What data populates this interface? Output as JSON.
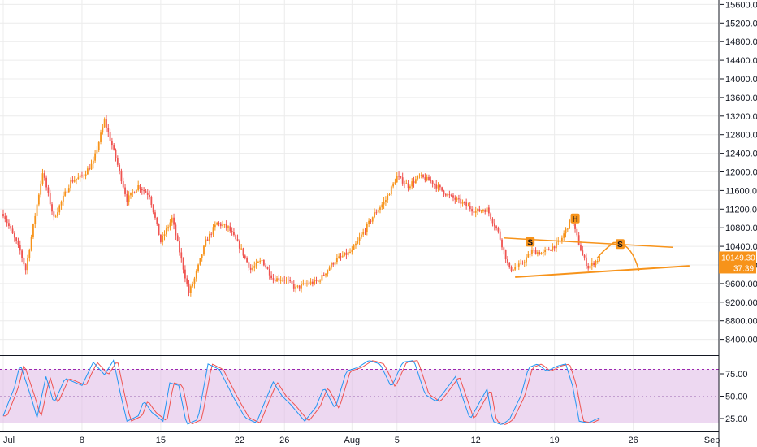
{
  "chart_data": {
    "type": "candlestick",
    "colors": {
      "up": "#f7931a",
      "down": "#ef5350",
      "pattern_line": "#f7931a",
      "price_badge": "#f7931a",
      "rsi_band_fill": "#e1bee7",
      "rsi_line_k": "#2196f3",
      "rsi_line_d": "#ef5350",
      "grid": "#ececec",
      "axis": "#131722"
    },
    "price_axis": {
      "ylim": [
        8000,
        15700
      ],
      "tick_labels": [
        "15600.00",
        "15200.00",
        "14800.00",
        "14400.00",
        "14000.00",
        "13600.00",
        "13200.00",
        "12800.00",
        "12400.00",
        "12000.00",
        "11600.00",
        "11200.00",
        "10800.00",
        "10400.00",
        "10000.00",
        "9600.00",
        "9200.00",
        "8800.00",
        "8400.00"
      ]
    },
    "x_axis": {
      "tick_labels": [
        "Jul",
        "8",
        "15",
        "22",
        "26",
        "Aug",
        "5",
        "12",
        "19",
        "26",
        "Sep"
      ],
      "tick_days": [
        0,
        7,
        14,
        21,
        25,
        31,
        35,
        42,
        49,
        56,
        63
      ]
    },
    "current_price": {
      "value_label": "10149.30",
      "countdown_label": "37:39",
      "value": 10149.3
    },
    "pattern": {
      "name": "head-and-shoulders",
      "labels": [
        "S",
        "H",
        "S"
      ],
      "neckline": [
        [
          45.5,
          9740
        ],
        [
          61,
          9980
        ]
      ],
      "resistance": [
        [
          44.5,
          10580
        ],
        [
          59.5,
          10380
        ]
      ],
      "label_points": [
        [
          46.8,
          10500
        ],
        [
          50.8,
          11000
        ],
        [
          54.8,
          10450
        ]
      ]
    },
    "rsi_panel": {
      "ylim": [
        0,
        100
      ],
      "band": [
        20,
        80
      ],
      "tick_labels": [
        "75.00",
        "50.00",
        "25.00"
      ],
      "tick_values": [
        75,
        50,
        25
      ]
    },
    "candle_keyframes": [
      [
        0,
        11100
      ],
      [
        1.5,
        10300
      ],
      [
        2,
        9900
      ],
      [
        3.5,
        12000
      ],
      [
        4.5,
        11000
      ],
      [
        6,
        11800
      ],
      [
        7,
        11900
      ],
      [
        8,
        12200
      ],
      [
        9,
        13100
      ],
      [
        10,
        12300
      ],
      [
        11,
        11400
      ],
      [
        12,
        11700
      ],
      [
        13,
        11500
      ],
      [
        14,
        10500
      ],
      [
        15,
        11000
      ],
      [
        16.5,
        9400
      ],
      [
        17,
        9700
      ],
      [
        18,
        10500
      ],
      [
        19,
        10900
      ],
      [
        20,
        10800
      ],
      [
        21,
        10400
      ],
      [
        22,
        9900
      ],
      [
        23,
        10100
      ],
      [
        24,
        9700
      ],
      [
        25,
        9700
      ],
      [
        26,
        9500
      ],
      [
        27,
        9600
      ],
      [
        28,
        9650
      ],
      [
        29.5,
        10100
      ],
      [
        31,
        10300
      ],
      [
        32,
        10700
      ],
      [
        33,
        11100
      ],
      [
        34,
        11400
      ],
      [
        35,
        11900
      ],
      [
        36,
        11700
      ],
      [
        37,
        11900
      ],
      [
        38,
        11800
      ],
      [
        39.5,
        11500
      ],
      [
        41,
        11300
      ],
      [
        42,
        11150
      ],
      [
        43,
        11200
      ],
      [
        44,
        10700
      ],
      [
        45,
        9900
      ],
      [
        46,
        10000
      ],
      [
        47,
        10300
      ],
      [
        48,
        10250
      ],
      [
        49.5,
        10500
      ],
      [
        50.5,
        11000
      ],
      [
        51.5,
        10200
      ],
      [
        52,
        9950
      ],
      [
        53,
        10149
      ]
    ],
    "rsi_keyframes": [
      [
        0,
        28
      ],
      [
        1,
        60
      ],
      [
        1.5,
        86
      ],
      [
        2.5,
        48
      ],
      [
        3,
        26
      ],
      [
        3.8,
        72
      ],
      [
        4.5,
        42
      ],
      [
        5.5,
        70
      ],
      [
        7,
        62
      ],
      [
        8,
        88
      ],
      [
        9,
        74
      ],
      [
        9.8,
        90
      ],
      [
        10.5,
        48
      ],
      [
        11,
        22
      ],
      [
        12,
        28
      ],
      [
        12.5,
        45
      ],
      [
        13.2,
        32
      ],
      [
        14.2,
        22
      ],
      [
        14.8,
        65
      ],
      [
        15.6,
        62
      ],
      [
        16.3,
        18
      ],
      [
        17.3,
        24
      ],
      [
        18.2,
        86
      ],
      [
        19.2,
        80
      ],
      [
        20.5,
        48
      ],
      [
        21.5,
        26
      ],
      [
        22.5,
        20
      ],
      [
        23.2,
        42
      ],
      [
        24,
        66
      ],
      [
        24.8,
        50
      ],
      [
        25.6,
        40
      ],
      [
        26.8,
        22
      ],
      [
        27.8,
        38
      ],
      [
        28.5,
        60
      ],
      [
        29.5,
        36
      ],
      [
        30.5,
        78
      ],
      [
        31.5,
        82
      ],
      [
        32.5,
        90
      ],
      [
        33.5,
        86
      ],
      [
        34.5,
        60
      ],
      [
        35.5,
        88
      ],
      [
        36.5,
        90
      ],
      [
        37.5,
        52
      ],
      [
        38.5,
        44
      ],
      [
        39.2,
        55
      ],
      [
        40.2,
        72
      ],
      [
        41.5,
        24
      ],
      [
        42.2,
        40
      ],
      [
        43,
        58
      ],
      [
        43.5,
        22
      ],
      [
        44.3,
        18
      ],
      [
        45,
        24
      ],
      [
        46,
        50
      ],
      [
        46.7,
        82
      ],
      [
        47.5,
        86
      ],
      [
        48.3,
        78
      ],
      [
        49.3,
        84
      ],
      [
        50,
        86
      ],
      [
        50.6,
        62
      ],
      [
        51.2,
        22
      ],
      [
        52,
        20
      ],
      [
        53,
        26
      ]
    ]
  }
}
